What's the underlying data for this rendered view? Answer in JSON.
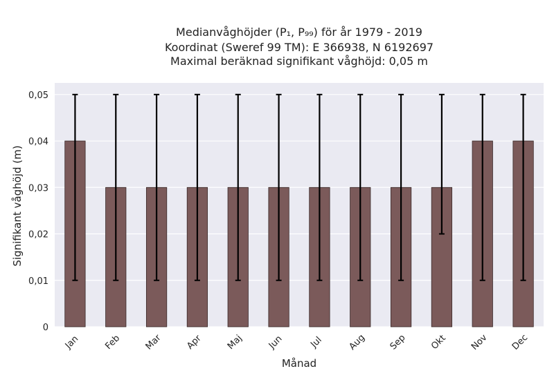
{
  "chart_data": {
    "type": "bar",
    "title_lines": [
      "Medianvåghöjder (P₁, P₉₉) för år 1979 - 2019",
      "Koordinat (Sweref 99 TM): E 366938, N 6192697",
      "Maximal beräknad signifikant våghöjd: 0,05 m"
    ],
    "xlabel": "Månad",
    "ylabel": "Signifikant våghöjd (m)",
    "categories": [
      "Jan",
      "Feb",
      "Mar",
      "Apr",
      "Maj",
      "Jun",
      "Jul",
      "Aug",
      "Sep",
      "Okt",
      "Nov",
      "Dec"
    ],
    "values": [
      0.04,
      0.03,
      0.03,
      0.03,
      0.03,
      0.03,
      0.03,
      0.03,
      0.03,
      0.03,
      0.04,
      0.04
    ],
    "error_low": [
      0.01,
      0.01,
      0.01,
      0.01,
      0.01,
      0.01,
      0.01,
      0.01,
      0.01,
      0.02,
      0.01,
      0.01
    ],
    "error_high": [
      0.05,
      0.05,
      0.05,
      0.05,
      0.05,
      0.05,
      0.05,
      0.05,
      0.05,
      0.05,
      0.05,
      0.05
    ],
    "ylim": [
      0,
      0.0525
    ],
    "yticks": [
      0,
      0.01,
      0.02,
      0.03,
      0.04,
      0.05
    ],
    "ytick_labels": [
      "0",
      "0,01",
      "0,02",
      "0,03",
      "0,04",
      "0,05"
    ],
    "grid": true,
    "colors": {
      "bar": "#7b5a5a",
      "bar_edge": "#3a2a2a",
      "error": "#000000",
      "plot_bg": "#eaeaf2",
      "grid": "#ffffff"
    }
  }
}
